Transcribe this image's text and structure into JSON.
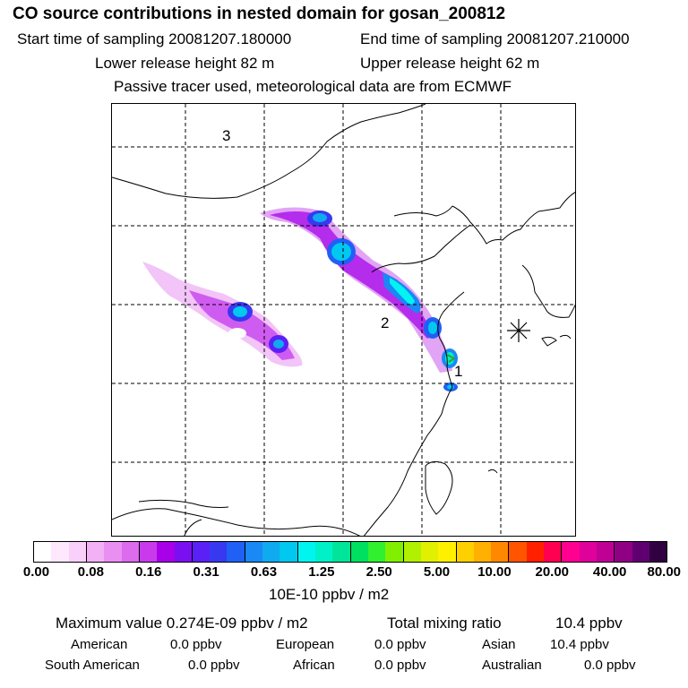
{
  "header": {
    "title": "CO  source contributions in nested domain for gosan_200812",
    "start_label": "Start time of sampling 20081207.180000",
    "end_label": "End time of sampling 20081207.210000",
    "lower_label": "Lower release height   82 m",
    "upper_label": "Upper release height   62 m",
    "note": "Passive tracer used, meteorological data are from ECMWF"
  },
  "map": {
    "labels": [
      "3",
      "2",
      "1"
    ],
    "receptor_marker": "asterisk-icon"
  },
  "colorbar": {
    "colors": [
      "#ffffff",
      "#fde8fd",
      "#f9d0fa",
      "#f2b0f5",
      "#e98ff2",
      "#dc6bee",
      "#c93aec",
      "#a800e8",
      "#7a10f2",
      "#5a20f5",
      "#3838f0",
      "#2060f5",
      "#1a88f5",
      "#10aaf0",
      "#00c8f0",
      "#00f5f0",
      "#00f0c8",
      "#00e59a",
      "#00e060",
      "#30f030",
      "#80f000",
      "#b0f000",
      "#e0f000",
      "#fff000",
      "#ffd000",
      "#ffb000",
      "#ff8800",
      "#ff5500",
      "#ff2000",
      "#ff0050",
      "#ff0090",
      "#e0009a",
      "#c00095",
      "#900085",
      "#600070",
      "#300040"
    ],
    "ticks": [
      "0.00",
      "0.08",
      "0.16",
      "0.31",
      "0.63",
      "1.25",
      "2.50",
      "5.00",
      "10.00",
      "20.00",
      "40.00",
      "80.00"
    ],
    "units": "10E-10 ppbv / m2"
  },
  "summary": {
    "max_value": "Maximum value  0.274E-09 ppbv / m2",
    "total_mixing": "Total mixing ratio",
    "total_value": "10.4 ppbv",
    "regions": [
      {
        "name": "American",
        "value": "0.0 ppbv"
      },
      {
        "name": "European",
        "value": "0.0 ppbv"
      },
      {
        "name": "Asian",
        "value": "10.4 ppbv"
      },
      {
        "name": "South American",
        "value": "0.0 ppbv"
      },
      {
        "name": "African",
        "value": "0.0 ppbv"
      },
      {
        "name": "Australian",
        "value": "0.0 ppbv"
      }
    ]
  }
}
